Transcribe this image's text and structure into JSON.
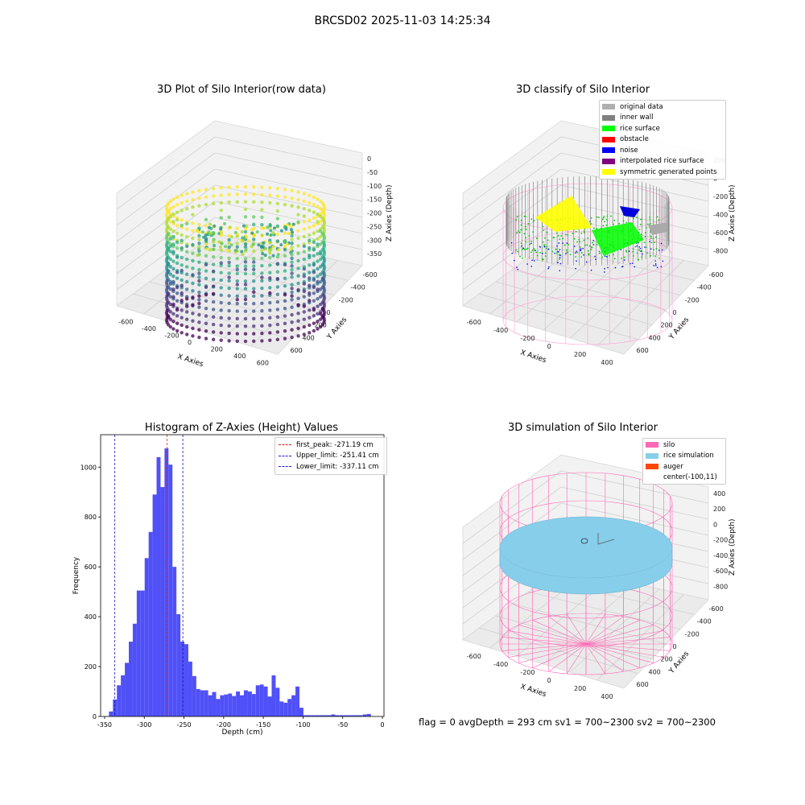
{
  "suptitle": "BRCSD02 2025-11-03 14:25:34",
  "footer": "flag = 0     avgDepth = 293 cm  sv1 = 700~2300  sv2 = 700~2300",
  "colors": {
    "hist_bar": "#5050f8",
    "peak_line": "#e02020",
    "limit_line": "#1818c8",
    "silo": "#ff69b4",
    "rice_sim": "#87ceeb",
    "auger": "#ff4500"
  },
  "plots": {
    "raw": {
      "title": "3D Plot of Silo Interior(row data)",
      "xlabel": "X Axies",
      "ylabel": "Y Axies",
      "zlabel": "Z Axies (Depth)",
      "xticks": [
        "-600",
        "-400",
        "-200",
        "0",
        "200",
        "400",
        "600"
      ],
      "yticks": [
        "-600",
        "-400",
        "-200",
        "0",
        "200",
        "400",
        "600"
      ],
      "zticks": [
        "0",
        "-50",
        "-100",
        "-150",
        "-200",
        "-250",
        "-300",
        "-350"
      ]
    },
    "classify": {
      "title": "3D classify of Silo Interior",
      "xlabel": "X Axies",
      "ylabel": "Y Axies",
      "zlabel": "Z Axies (Depth)",
      "xticks": [
        "-600",
        "-400",
        "-200",
        "0",
        "200",
        "400"
      ],
      "yticks": [
        "-600",
        "-400",
        "-200",
        "0",
        "200",
        "400",
        "600"
      ],
      "zticks": [
        "200",
        "0",
        "-200",
        "-400",
        "-600",
        "-800"
      ],
      "legend": [
        {
          "label": "original data",
          "color": "#b0b0b0"
        },
        {
          "label": "inner wall",
          "color": "#808080"
        },
        {
          "label": "rice surface",
          "color": "#00ff00"
        },
        {
          "label": "obstacle",
          "color": "#ff0000"
        },
        {
          "label": "noise",
          "color": "#0000ff"
        },
        {
          "label": "interpolated rice surface",
          "color": "#800080"
        },
        {
          "label": "symmetric generated points",
          "color": "#ffff00"
        }
      ]
    },
    "sim": {
      "title": "3D simulation of Silo Interior",
      "xlabel": "X Axies",
      "ylabel": "Y Axies",
      "zlabel": "Z Axies (Depth)",
      "xticks": [
        "-600",
        "-400",
        "-200",
        "0",
        "200",
        "400"
      ],
      "yticks": [
        "-600",
        "-400",
        "-200",
        "0",
        "200",
        "400",
        "600"
      ],
      "zticks": [
        "400",
        "200",
        "0",
        "-200",
        "-400",
        "-600",
        "-800"
      ],
      "legend": [
        {
          "label": "silo",
          "color": "#ff69b4"
        },
        {
          "label": "rice simulation",
          "color": "#87ceeb"
        },
        {
          "label": "auger",
          "color": "#ff4500"
        },
        {
          "label": "center(-100,11)",
          "color": ""
        }
      ]
    }
  },
  "chart_data": {
    "type": "bar",
    "title": "Histogram of Z-Axies (Height) Values",
    "xlabel": "Depth (cm)",
    "ylabel": "Frequency",
    "xlim": [
      -355,
      2
    ],
    "ylim": [
      0,
      1130
    ],
    "xticks": [
      -350,
      -300,
      -250,
      -200,
      -150,
      -100,
      -50,
      0
    ],
    "yticks": [
      0,
      200,
      400,
      600,
      800,
      1000
    ],
    "bin_width": 5,
    "bins": [
      {
        "x": -342,
        "v": 20
      },
      {
        "x": -337,
        "v": 68
      },
      {
        "x": -332,
        "v": 125
      },
      {
        "x": -327,
        "v": 165
      },
      {
        "x": -322,
        "v": 215
      },
      {
        "x": -317,
        "v": 300
      },
      {
        "x": -312,
        "v": 372
      },
      {
        "x": -307,
        "v": 505
      },
      {
        "x": -302,
        "v": 505
      },
      {
        "x": -297,
        "v": 635
      },
      {
        "x": -292,
        "v": 740
      },
      {
        "x": -287,
        "v": 890
      },
      {
        "x": -282,
        "v": 1040
      },
      {
        "x": -277,
        "v": 920
      },
      {
        "x": -272,
        "v": 1075
      },
      {
        "x": -267,
        "v": 1010
      },
      {
        "x": -262,
        "v": 600
      },
      {
        "x": -257,
        "v": 410
      },
      {
        "x": -252,
        "v": 300
      },
      {
        "x": -247,
        "v": 290
      },
      {
        "x": -242,
        "v": 220
      },
      {
        "x": -237,
        "v": 162
      },
      {
        "x": -232,
        "v": 110
      },
      {
        "x": -227,
        "v": 105
      },
      {
        "x": -222,
        "v": 105
      },
      {
        "x": -217,
        "v": 85
      },
      {
        "x": -212,
        "v": 98
      },
      {
        "x": -207,
        "v": 70
      },
      {
        "x": -202,
        "v": 85
      },
      {
        "x": -197,
        "v": 88
      },
      {
        "x": -192,
        "v": 92
      },
      {
        "x": -187,
        "v": 82
      },
      {
        "x": -182,
        "v": 100
      },
      {
        "x": -177,
        "v": 85
      },
      {
        "x": -172,
        "v": 105
      },
      {
        "x": -167,
        "v": 100
      },
      {
        "x": -162,
        "v": 90
      },
      {
        "x": -157,
        "v": 125
      },
      {
        "x": -152,
        "v": 128
      },
      {
        "x": -147,
        "v": 120
      },
      {
        "x": -142,
        "v": 80
      },
      {
        "x": -137,
        "v": 165
      },
      {
        "x": -132,
        "v": 115
      },
      {
        "x": -127,
        "v": 60
      },
      {
        "x": -122,
        "v": 55
      },
      {
        "x": -117,
        "v": 70
      },
      {
        "x": -112,
        "v": 85
      },
      {
        "x": -107,
        "v": 120
      },
      {
        "x": -102,
        "v": 35
      },
      {
        "x": -97,
        "v": 5
      },
      {
        "x": -92,
        "v": 5
      },
      {
        "x": -87,
        "v": 5
      },
      {
        "x": -82,
        "v": 5
      },
      {
        "x": -77,
        "v": 5
      },
      {
        "x": -72,
        "v": 5
      },
      {
        "x": -67,
        "v": 5
      },
      {
        "x": -62,
        "v": 8
      },
      {
        "x": -57,
        "v": 5
      },
      {
        "x": -52,
        "v": 5
      },
      {
        "x": -47,
        "v": 5
      },
      {
        "x": -42,
        "v": 5
      },
      {
        "x": -37,
        "v": 5
      },
      {
        "x": -32,
        "v": 5
      },
      {
        "x": -27,
        "v": 5
      },
      {
        "x": -22,
        "v": 8
      },
      {
        "x": -17,
        "v": 10
      }
    ],
    "vlines": [
      {
        "label": "first_peak: -271.19 cm",
        "x": -271.19,
        "color": "#e02020"
      },
      {
        "label": "Upper_limit: -251.41 cm",
        "x": -251.41,
        "color": "#1818c8"
      },
      {
        "label": "Lower_limit: -337.11 cm",
        "x": -337.11,
        "color": "#1818c8"
      }
    ],
    "legend_position": "upper right"
  }
}
